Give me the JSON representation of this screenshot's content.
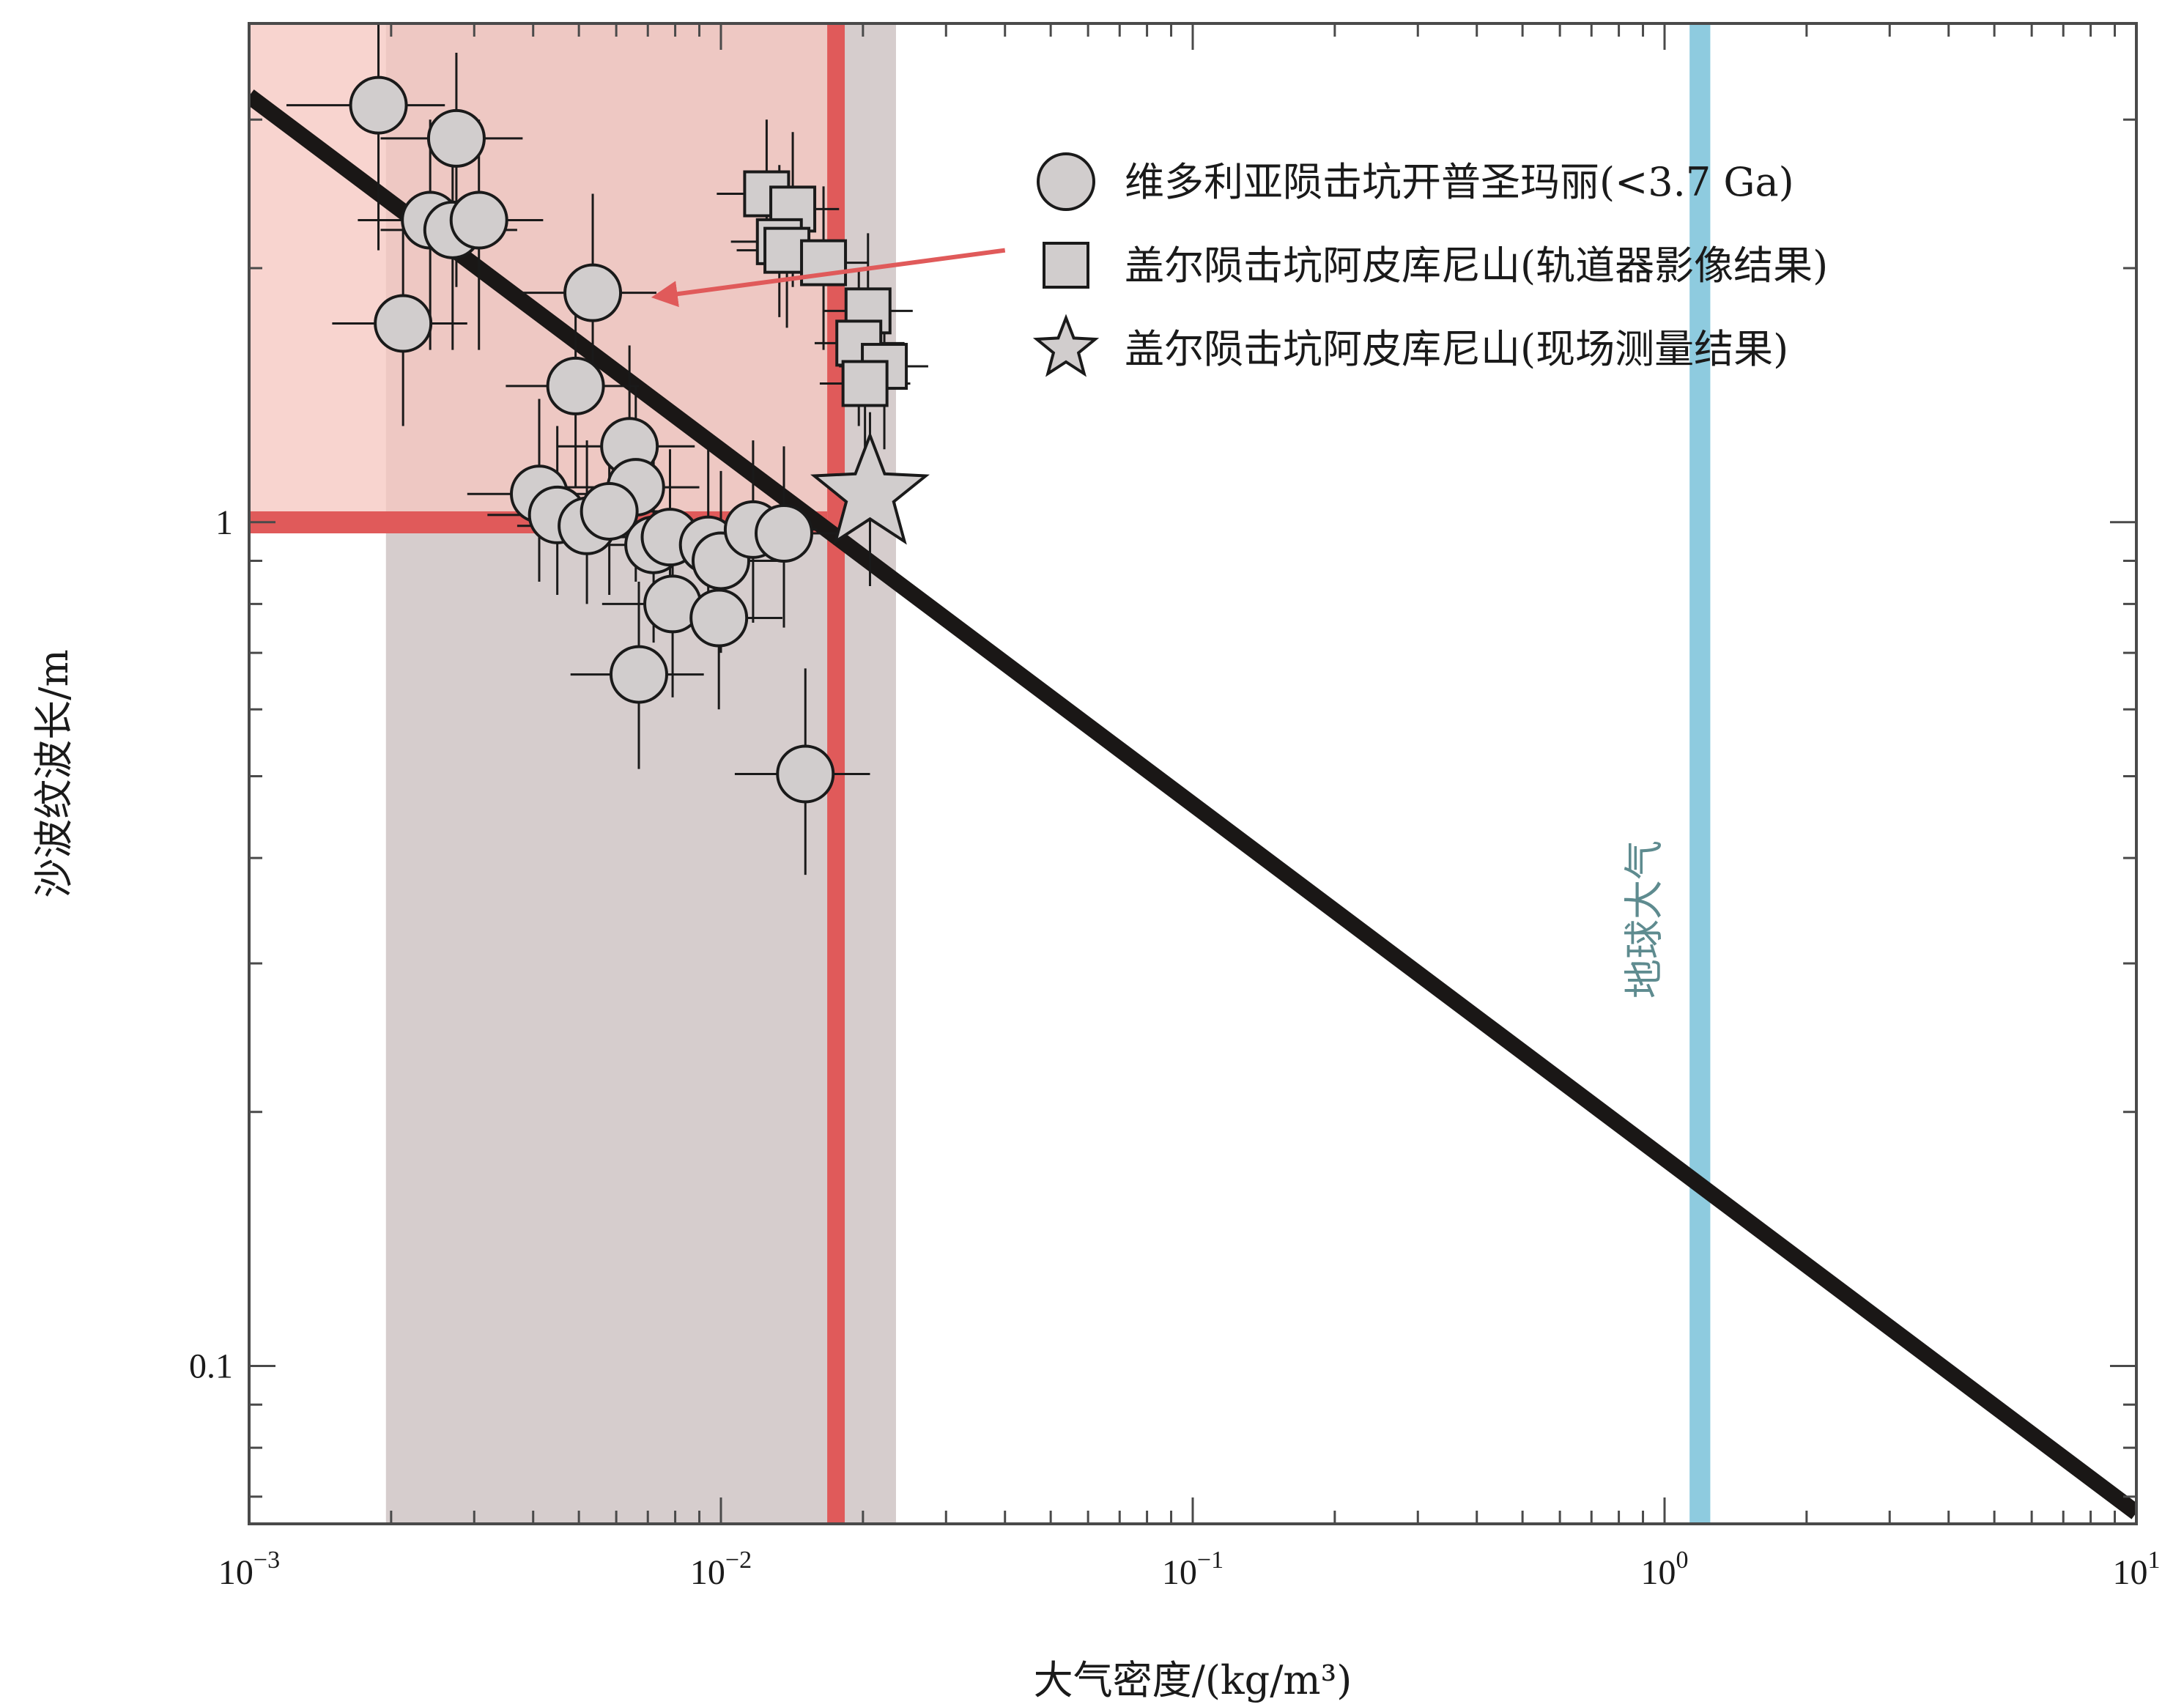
{
  "chart_data": {
    "type": "scatter",
    "xscale": "log",
    "yscale": "log",
    "xlim": [
      0.001,
      10
    ],
    "ylim": [
      0.065,
      3.9
    ],
    "xlabel": "大气密度/(kg/m³)",
    "ylabel": "沙波纹波长/m",
    "x_major_ticks": [
      {
        "value": 0.001,
        "base": "10",
        "exp": "−3"
      },
      {
        "value": 0.01,
        "base": "10",
        "exp": "−2"
      },
      {
        "value": 0.1,
        "base": "10",
        "exp": "−1"
      },
      {
        "value": 1,
        "base": "10",
        "exp": "0"
      },
      {
        "value": 10,
        "base": "10",
        "exp": "1"
      }
    ],
    "y_major_ticks": [
      {
        "value": 0.1,
        "label": "0.1"
      },
      {
        "value": 1,
        "label": "1"
      }
    ],
    "trend_line": {
      "x": [
        0.001,
        10
      ],
      "y": [
        3.2,
        0.067
      ],
      "color": "#1a1716"
    },
    "regions": [
      {
        "type": "x-span",
        "x": [
          0.00195,
          0.0235
        ],
        "color": "#d6cdcd"
      },
      {
        "type": "box",
        "x": [
          0.001,
          0.0182
        ],
        "y": [
          1.0,
          3.9
        ],
        "color": "#f5c6bf",
        "opacity": 0.75
      },
      {
        "type": "x-band",
        "x": [
          0.0168,
          0.0183
        ],
        "color": "#e05a5a"
      },
      {
        "type": "y-band",
        "y": [
          0.97,
          1.03
        ],
        "x_to": 0.0168,
        "color": "#e05a5a"
      },
      {
        "type": "x-band",
        "x": [
          1.13,
          1.25
        ],
        "color": "#8ecbdf",
        "label": "地球大气"
      }
    ],
    "arrow": {
      "from": [
        0.04,
        2.1
      ],
      "to": [
        0.0073,
        1.85
      ],
      "color": "#e05a5a"
    },
    "series": [
      {
        "name": "维多利亚陨击坑开普圣玛丽(<3.7 Ga)",
        "marker": "circle",
        "color": "#d1cdcd",
        "points": [
          {
            "x": 0.00188,
            "y": 3.12,
            "xe": [
              0.0012,
              0.0026
            ],
            "ye": [
              2.1,
              3.9
            ]
          },
          {
            "x": 0.00275,
            "y": 2.85,
            "xe": [
              0.0019,
              0.0038
            ],
            "ye": [
              1.9,
              3.6
            ]
          },
          {
            "x": 0.00242,
            "y": 2.28,
            "xe": [
              0.0017,
              0.0033
            ],
            "ye": [
              1.6,
              3.0
            ]
          },
          {
            "x": 0.0027,
            "y": 2.22,
            "xe": [
              0.0019,
              0.0037
            ],
            "ye": [
              1.6,
              2.9
            ]
          },
          {
            "x": 0.00307,
            "y": 2.28,
            "xe": [
              0.0022,
              0.0042
            ],
            "ye": [
              1.6,
              3.0
            ]
          },
          {
            "x": 0.00212,
            "y": 1.72,
            "xe": [
              0.0015,
              0.0029
            ],
            "ye": [
              1.3,
              2.3
            ]
          },
          {
            "x": 0.00535,
            "y": 1.87,
            "xe": [
              0.0038,
              0.0073
            ],
            "ye": [
              1.4,
              2.45
            ]
          },
          {
            "x": 0.00492,
            "y": 1.45,
            "xe": [
              0.0035,
              0.0067
            ],
            "ye": [
              1.1,
              1.9
            ]
          },
          {
            "x": 0.0064,
            "y": 1.23,
            "xe": [
              0.0045,
              0.0088
            ],
            "ye": [
              0.95,
              1.62
            ]
          },
          {
            "x": 0.0066,
            "y": 1.1,
            "xe": [
              0.0047,
              0.009
            ],
            "ye": [
              0.85,
              1.45
            ]
          },
          {
            "x": 0.00412,
            "y": 1.08,
            "xe": [
              0.0029,
              0.0056
            ],
            "ye": [
              0.85,
              1.4
            ]
          },
          {
            "x": 0.0045,
            "y": 1.02,
            "xe": [
              0.0032,
              0.0062
            ],
            "ye": [
              0.82,
              1.3
            ]
          },
          {
            "x": 0.0052,
            "y": 0.99,
            "xe": [
              0.0037,
              0.0071
            ],
            "ye": [
              0.8,
              1.25
            ]
          },
          {
            "x": 0.0058,
            "y": 1.03,
            "xe": [
              0.0041,
              0.008
            ],
            "ye": [
              0.82,
              1.3
            ]
          },
          {
            "x": 0.0072,
            "y": 0.94,
            "xe": [
              0.0051,
              0.0099
            ],
            "ye": [
              0.72,
              1.2
            ]
          },
          {
            "x": 0.0078,
            "y": 0.96,
            "xe": [
              0.0055,
              0.0107
            ],
            "ye": [
              0.75,
              1.22
            ]
          },
          {
            "x": 0.0094,
            "y": 0.94,
            "xe": [
              0.0066,
              0.0129
            ],
            "ye": [
              0.72,
              1.22
            ]
          },
          {
            "x": 0.01,
            "y": 0.9,
            "xe": [
              0.0071,
              0.0137
            ],
            "ye": [
              0.7,
              1.15
            ]
          },
          {
            "x": 0.0117,
            "y": 0.98,
            "xe": [
              0.0083,
              0.016
            ],
            "ye": [
              0.76,
              1.25
            ]
          },
          {
            "x": 0.0136,
            "y": 0.97,
            "xe": [
              0.0097,
              0.0186
            ],
            "ye": [
              0.75,
              1.23
            ]
          },
          {
            "x": 0.0079,
            "y": 0.8,
            "xe": [
              0.0056,
              0.0108
            ],
            "ye": [
              0.62,
              1.02
            ]
          },
          {
            "x": 0.0099,
            "y": 0.77,
            "xe": [
              0.007,
              0.0135
            ],
            "ye": [
              0.6,
              0.99
            ]
          },
          {
            "x": 0.0067,
            "y": 0.66,
            "xe": [
              0.0048,
              0.0092
            ],
            "ye": [
              0.51,
              0.85
            ]
          },
          {
            "x": 0.0151,
            "y": 0.503,
            "xe": [
              0.0107,
              0.0207
            ],
            "ye": [
              0.382,
              0.671
            ]
          }
        ]
      },
      {
        "name": "盖尔陨击坑阿皮库尼山(轨道器影像结果)",
        "marker": "square",
        "color": "#d1cdcd",
        "points": [
          {
            "x": 0.0125,
            "y": 2.45,
            "xe": [
              0.0098,
              0.0158
            ],
            "ye": [
              2.0,
              3.0
            ]
          },
          {
            "x": 0.0142,
            "y": 2.35,
            "xe": [
              0.0112,
              0.0178
            ],
            "ye": [
              1.9,
              2.9
            ]
          },
          {
            "x": 0.0133,
            "y": 2.15,
            "xe": [
              0.0105,
              0.0168
            ],
            "ye": [
              1.75,
              2.65
            ]
          },
          {
            "x": 0.0138,
            "y": 2.1,
            "xe": [
              0.0108,
              0.0172
            ],
            "ye": [
              1.7,
              2.6
            ]
          },
          {
            "x": 0.0165,
            "y": 2.03,
            "xe": [
              0.0132,
              0.0205
            ],
            "ye": [
              1.6,
              2.5
            ]
          },
          {
            "x": 0.0205,
            "y": 1.78,
            "xe": [
              0.0165,
              0.0255
            ],
            "ye": [
              1.4,
              2.2
            ]
          },
          {
            "x": 0.0196,
            "y": 1.63,
            "xe": [
              0.0158,
              0.0245
            ],
            "ye": [
              1.3,
              2.0
            ]
          },
          {
            "x": 0.0222,
            "y": 1.53,
            "xe": [
              0.0178,
              0.0275
            ],
            "ye": [
              1.22,
              1.88
            ]
          },
          {
            "x": 0.0202,
            "y": 1.46,
            "xe": [
              0.0162,
              0.0252
            ],
            "ye": [
              1.17,
              1.8
            ]
          }
        ]
      },
      {
        "name": "盖尔陨击坑阿皮库尼山(现场测量结果)",
        "marker": "star",
        "color": "#d1cdcd",
        "points": [
          {
            "x": 0.0207,
            "y": 1.08,
            "xe": [
              0.0207,
              0.0207
            ],
            "ye": [
              0.84,
              1.35
            ]
          }
        ]
      }
    ],
    "legend": {
      "placement": "top-right (inside)"
    },
    "grid": false
  }
}
